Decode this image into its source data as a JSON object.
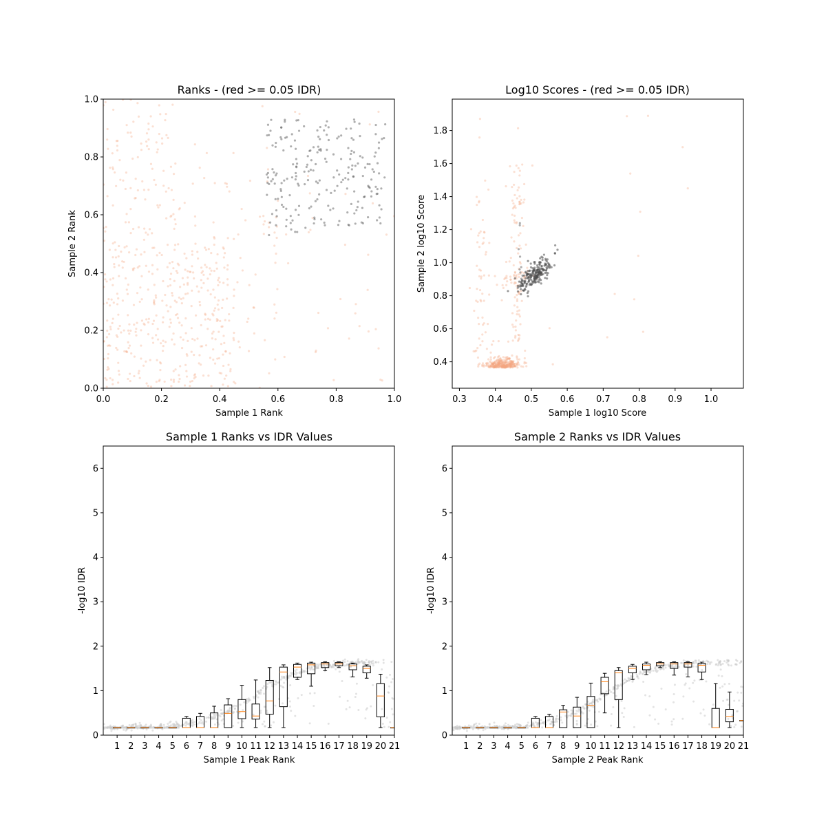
{
  "chart_data": [
    {
      "type": "scatter",
      "title": "Ranks - (red >= 0.05 IDR)",
      "xlabel": "Sample 1 Rank",
      "ylabel": "Sample 2 Rank",
      "xlim": [
        0,
        1
      ],
      "ylim": [
        0,
        1
      ],
      "xticks": [
        "0.0",
        "0.2",
        "0.4",
        "0.6",
        "0.8",
        "1.0"
      ],
      "yticks": [
        "0.0",
        "0.2",
        "0.4",
        "0.6",
        "0.8",
        "1.0"
      ],
      "grid": false,
      "colors": {
        "pass": "#4d4d4d",
        "fail": "#f4a582"
      },
      "series": [
        {
          "role": "pass",
          "count": 220,
          "x_range": [
            0.56,
            0.97
          ],
          "y_range": [
            0.52,
            0.93
          ]
        },
        {
          "role": "fail",
          "count": 600,
          "x_range": [
            0.0,
            1.0
          ],
          "y_range": [
            0.0,
            1.0
          ]
        }
      ]
    },
    {
      "type": "scatter",
      "title": "Log10 Scores - (red >= 0.05 IDR)",
      "xlabel": "Sample 1 log10 Score",
      "ylabel": "Sample 2 log10 Score",
      "xlim": [
        0.28,
        1.09
      ],
      "ylim": [
        0.24,
        1.99
      ],
      "xticks": [
        "0.3",
        "0.4",
        "0.5",
        "0.6",
        "0.7",
        "0.8",
        "0.9",
        "1.0"
      ],
      "yticks": [
        "0.4",
        "0.6",
        "0.8",
        "1.0",
        "1.2",
        "1.4",
        "1.6",
        "1.8"
      ],
      "grid": false,
      "colors": {
        "pass": "#4d4d4d",
        "fail": "#f4a582"
      },
      "series": [
        {
          "role": "pass",
          "count": 220,
          "center": [
            0.51,
            0.93
          ]
        },
        {
          "role": "fail",
          "count": 520,
          "center": [
            0.42,
            0.38
          ]
        }
      ]
    },
    {
      "type": "box",
      "title": "Sample 1 Ranks vs IDR Values",
      "xlabel": "Sample 1 Peak Rank",
      "ylabel": "-log10 IDR",
      "xlim": [
        0,
        21
      ],
      "ylim": [
        0,
        6.5
      ],
      "categories": [
        "1",
        "2",
        "3",
        "4",
        "5",
        "6",
        "7",
        "8",
        "9",
        "10",
        "11",
        "12",
        "13",
        "14",
        "15",
        "16",
        "17",
        "18",
        "19",
        "20",
        "21"
      ],
      "yticks": [
        "0",
        "1",
        "2",
        "3",
        "4",
        "5",
        "6"
      ],
      "boxes": [
        {
          "whislo": 0.17,
          "q1": 0.17,
          "med": 0.17,
          "q3": 0.17,
          "whishi": 0.17
        },
        {
          "whislo": 0.17,
          "q1": 0.17,
          "med": 0.17,
          "q3": 0.17,
          "whishi": 0.17
        },
        {
          "whislo": 0.17,
          "q1": 0.17,
          "med": 0.17,
          "q3": 0.17,
          "whishi": 0.17
        },
        {
          "whislo": 0.17,
          "q1": 0.17,
          "med": 0.17,
          "q3": 0.17,
          "whishi": 0.17
        },
        {
          "whislo": 0.17,
          "q1": 0.17,
          "med": 0.17,
          "q3": 0.17,
          "whishi": 0.17
        },
        {
          "whislo": 0.17,
          "q1": 0.17,
          "med": 0.17,
          "q3": 0.38,
          "whishi": 0.42
        },
        {
          "whislo": 0.17,
          "q1": 0.17,
          "med": 0.17,
          "q3": 0.42,
          "whishi": 0.49
        },
        {
          "whislo": 0.17,
          "q1": 0.17,
          "med": 0.17,
          "q3": 0.5,
          "whishi": 0.65
        },
        {
          "whislo": 0.17,
          "q1": 0.17,
          "med": 0.49,
          "q3": 0.68,
          "whishi": 0.82
        },
        {
          "whislo": 0.17,
          "q1": 0.37,
          "med": 0.53,
          "q3": 0.8,
          "whishi": 1.12
        },
        {
          "whislo": 0.17,
          "q1": 0.36,
          "med": 0.43,
          "q3": 0.7,
          "whishi": 1.24
        },
        {
          "whislo": 0.17,
          "q1": 0.47,
          "med": 0.77,
          "q3": 1.23,
          "whishi": 1.52
        },
        {
          "whislo": 0.17,
          "q1": 0.64,
          "med": 1.42,
          "q3": 1.53,
          "whishi": 1.58
        },
        {
          "whislo": 1.25,
          "q1": 1.3,
          "med": 1.53,
          "q3": 1.59,
          "whishi": 1.62
        },
        {
          "whislo": 1.1,
          "q1": 1.38,
          "med": 1.58,
          "q3": 1.62,
          "whishi": 1.64
        },
        {
          "whislo": 1.45,
          "q1": 1.52,
          "med": 1.6,
          "q3": 1.63,
          "whishi": 1.65
        },
        {
          "whislo": 1.52,
          "q1": 1.56,
          "med": 1.6,
          "q3": 1.63,
          "whishi": 1.65
        },
        {
          "whislo": 1.31,
          "q1": 1.47,
          "med": 1.56,
          "q3": 1.6,
          "whishi": 1.62
        },
        {
          "whislo": 1.28,
          "q1": 1.4,
          "med": 1.5,
          "q3": 1.55,
          "whishi": 1.58
        },
        {
          "whislo": 0.17,
          "q1": 0.41,
          "med": 0.88,
          "q3": 1.16,
          "whishi": 1.37
        },
        {
          "whislo": 0.17,
          "q1": 0.17,
          "med": 0.17,
          "q3": 0.17,
          "whishi": 0.17
        }
      ],
      "point_color": "#c8c8c8",
      "median_color": "#ff7f0e"
    },
    {
      "type": "box",
      "title": "Sample 2 Ranks vs IDR Values",
      "xlabel": "Sample 2 Peak Rank",
      "ylabel": "-log10 IDR",
      "xlim": [
        0,
        21
      ],
      "ylim": [
        0,
        6.5
      ],
      "categories": [
        "1",
        "2",
        "3",
        "4",
        "5",
        "6",
        "7",
        "8",
        "9",
        "10",
        "11",
        "12",
        "13",
        "14",
        "15",
        "16",
        "17",
        "18",
        "19",
        "20",
        "21"
      ],
      "yticks": [
        "0",
        "1",
        "2",
        "3",
        "4",
        "5",
        "6"
      ],
      "boxes": [
        {
          "whislo": 0.17,
          "q1": 0.17,
          "med": 0.17,
          "q3": 0.17,
          "whishi": 0.17
        },
        {
          "whislo": 0.17,
          "q1": 0.17,
          "med": 0.17,
          "q3": 0.17,
          "whishi": 0.17
        },
        {
          "whislo": 0.17,
          "q1": 0.17,
          "med": 0.17,
          "q3": 0.17,
          "whishi": 0.17
        },
        {
          "whislo": 0.17,
          "q1": 0.17,
          "med": 0.17,
          "q3": 0.17,
          "whishi": 0.17
        },
        {
          "whislo": 0.17,
          "q1": 0.17,
          "med": 0.17,
          "q3": 0.17,
          "whishi": 0.17
        },
        {
          "whislo": 0.17,
          "q1": 0.17,
          "med": 0.17,
          "q3": 0.38,
          "whishi": 0.42
        },
        {
          "whislo": 0.17,
          "q1": 0.17,
          "med": 0.17,
          "q3": 0.42,
          "whishi": 0.47
        },
        {
          "whislo": 0.17,
          "q1": 0.17,
          "med": 0.52,
          "q3": 0.57,
          "whishi": 0.67
        },
        {
          "whislo": 0.17,
          "q1": 0.17,
          "med": 0.43,
          "q3": 0.63,
          "whishi": 0.85
        },
        {
          "whislo": 0.17,
          "q1": 0.17,
          "med": 0.67,
          "q3": 0.87,
          "whishi": 1.17
        },
        {
          "whislo": 0.5,
          "q1": 0.93,
          "med": 1.2,
          "q3": 1.3,
          "whishi": 1.39
        },
        {
          "whislo": 0.17,
          "q1": 0.8,
          "med": 1.4,
          "q3": 1.45,
          "whishi": 1.52
        },
        {
          "whislo": 1.25,
          "q1": 1.4,
          "med": 1.5,
          "q3": 1.55,
          "whishi": 1.59
        },
        {
          "whislo": 1.36,
          "q1": 1.47,
          "med": 1.57,
          "q3": 1.6,
          "whishi": 1.64
        },
        {
          "whislo": 1.52,
          "q1": 1.56,
          "med": 1.6,
          "q3": 1.63,
          "whishi": 1.65
        },
        {
          "whislo": 1.35,
          "q1": 1.5,
          "med": 1.6,
          "q3": 1.63,
          "whishi": 1.65
        },
        {
          "whislo": 1.31,
          "q1": 1.53,
          "med": 1.6,
          "q3": 1.63,
          "whishi": 1.65
        },
        {
          "whislo": 1.25,
          "q1": 1.42,
          "med": 1.57,
          "q3": 1.61,
          "whishi": 1.64
        },
        {
          "whislo": 0.17,
          "q1": 0.17,
          "med": 0.17,
          "q3": 0.6,
          "whishi": 1.16
        },
        {
          "whislo": 0.17,
          "q1": 0.3,
          "med": 0.42,
          "q3": 0.58,
          "whishi": 0.97
        },
        {
          "whislo": 0.33,
          "q1": 0.33,
          "med": 0.33,
          "q3": 0.33,
          "whishi": 0.33
        }
      ],
      "point_color": "#c8c8c8",
      "median_color": "#ff7f0e"
    }
  ]
}
